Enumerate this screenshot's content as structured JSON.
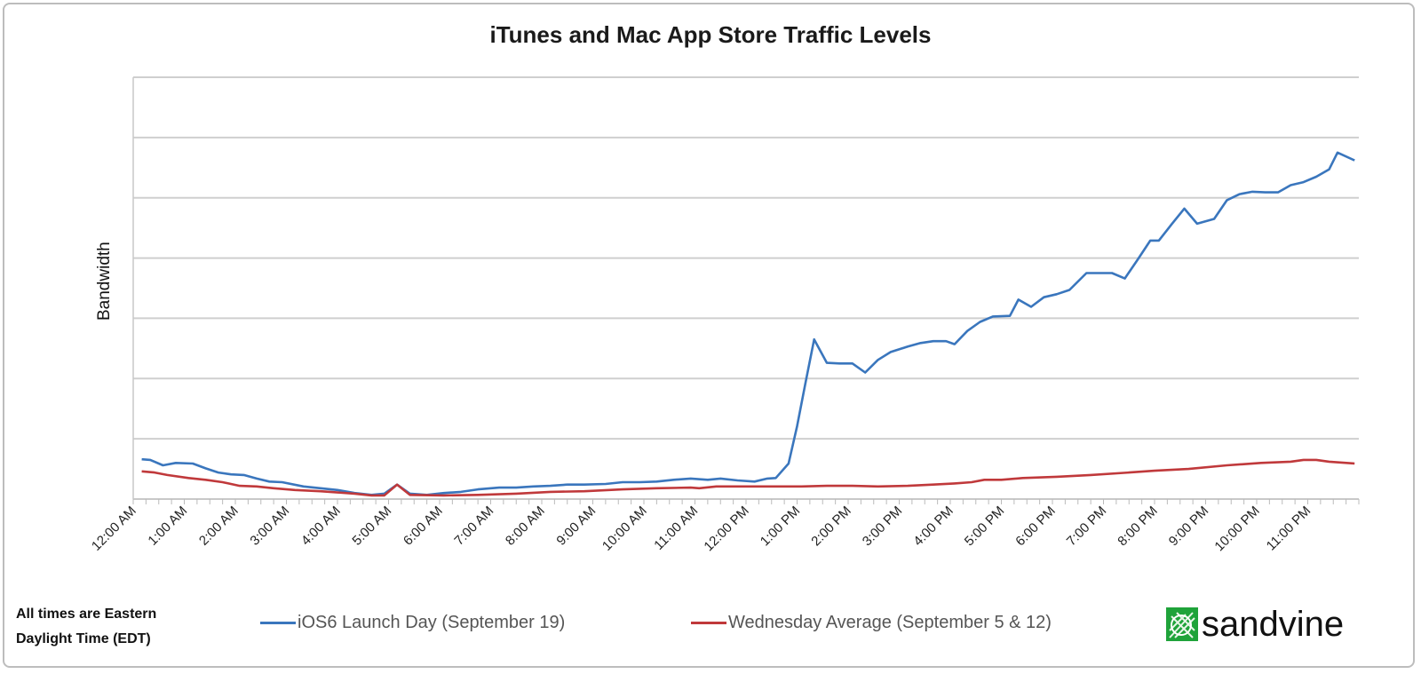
{
  "chart_data": {
    "type": "line",
    "title": "iTunes and Mac App Store Traffic Levels",
    "xlabel": "",
    "ylabel": "Bandwidth",
    "xlim": [
      "00:00",
      "24:00"
    ],
    "ylim": [
      0,
      7
    ],
    "y_tick_labels_shown": false,
    "grid": "horizontal",
    "legend_position": "bottom",
    "x_tick_labels": [
      "12:00 AM",
      "1:00 AM",
      "2:00 AM",
      "3:00 AM",
      "4:00 AM",
      "5:00 AM",
      "6:00 AM",
      "7:00 AM",
      "8:00 AM",
      "9:00 AM",
      "10:00 AM",
      "11:00 AM",
      "12:00 PM",
      "1:00 PM",
      "2:00 PM",
      "3:00 PM",
      "4:00 PM",
      "5:00 PM",
      "6:00 PM",
      "7:00 PM",
      "8:00 PM",
      "9:00 PM",
      "10:00 PM",
      "11:00 PM"
    ],
    "series": [
      {
        "name": "iOS6 Launch Day (September 19)",
        "color": "#3a76bd",
        "x": [
          "00:10",
          "00:20",
          "00:35",
          "00:50",
          "01:10",
          "01:25",
          "01:40",
          "01:55",
          "02:10",
          "02:25",
          "02:40",
          "02:55",
          "03:20",
          "03:40",
          "04:00",
          "04:20",
          "04:40",
          "04:55",
          "05:10",
          "05:25",
          "05:45",
          "06:05",
          "06:25",
          "06:45",
          "07:10",
          "07:30",
          "07:50",
          "08:10",
          "08:30",
          "08:50",
          "09:15",
          "09:35",
          "09:55",
          "10:15",
          "10:35",
          "10:55",
          "11:15",
          "11:30",
          "11:50",
          "12:10",
          "12:25",
          "12:35",
          "12:50",
          "13:00",
          "13:10",
          "13:20",
          "13:35",
          "13:50",
          "14:05",
          "14:20",
          "14:35",
          "14:50",
          "15:10",
          "15:25",
          "15:40",
          "15:55",
          "16:05",
          "16:20",
          "16:35",
          "16:50",
          "17:10",
          "17:20",
          "17:35",
          "17:50",
          "18:05",
          "18:20",
          "18:40",
          "19:10",
          "19:25",
          "19:40",
          "19:55",
          "20:05",
          "20:20",
          "20:35",
          "20:50",
          "21:10",
          "21:25",
          "21:40",
          "21:55",
          "22:10",
          "22:25",
          "22:40",
          "22:55",
          "23:10",
          "23:25",
          "23:35",
          "23:55"
        ],
        "y": [
          0.66,
          0.65,
          0.56,
          0.6,
          0.59,
          0.51,
          0.44,
          0.41,
          0.4,
          0.34,
          0.29,
          0.28,
          0.21,
          0.18,
          0.15,
          0.1,
          0.07,
          0.09,
          0.24,
          0.09,
          0.07,
          0.1,
          0.12,
          0.16,
          0.19,
          0.19,
          0.21,
          0.22,
          0.24,
          0.24,
          0.25,
          0.28,
          0.28,
          0.29,
          0.32,
          0.34,
          0.32,
          0.34,
          0.31,
          0.29,
          0.34,
          0.35,
          0.59,
          1.21,
          1.94,
          2.65,
          2.26,
          2.25,
          2.25,
          2.1,
          2.31,
          2.44,
          2.53,
          2.59,
          2.62,
          2.62,
          2.57,
          2.79,
          2.94,
          3.03,
          3.04,
          3.31,
          3.19,
          3.35,
          3.4,
          3.47,
          3.75,
          3.75,
          3.66,
          3.97,
          4.29,
          4.29,
          4.56,
          4.82,
          4.57,
          4.65,
          4.96,
          5.06,
          5.1,
          5.09,
          5.09,
          5.21,
          5.26,
          5.35,
          5.47,
          5.75,
          5.62
        ]
      },
      {
        "name": "Wednesday Average (September 5 & 12)",
        "color": "#c0393b",
        "x": [
          "00:10",
          "00:25",
          "00:40",
          "01:05",
          "01:25",
          "01:45",
          "02:05",
          "02:25",
          "02:45",
          "03:10",
          "03:40",
          "04:20",
          "04:40",
          "04:55",
          "05:10",
          "05:25",
          "06:05",
          "06:45",
          "07:30",
          "08:10",
          "08:50",
          "09:35",
          "10:15",
          "10:55",
          "11:05",
          "11:25",
          "11:50",
          "12:30",
          "13:05",
          "13:35",
          "14:05",
          "14:35",
          "15:10",
          "15:40",
          "16:05",
          "16:25",
          "16:40",
          "17:00",
          "17:25",
          "18:05",
          "18:45",
          "19:30",
          "20:00",
          "20:40",
          "21:25",
          "22:05",
          "22:40",
          "22:55",
          "23:10",
          "23:25",
          "23:55"
        ],
        "y": [
          0.46,
          0.44,
          0.4,
          0.35,
          0.32,
          0.28,
          0.22,
          0.21,
          0.18,
          0.15,
          0.13,
          0.09,
          0.06,
          0.06,
          0.24,
          0.07,
          0.06,
          0.07,
          0.09,
          0.12,
          0.13,
          0.16,
          0.18,
          0.19,
          0.18,
          0.21,
          0.21,
          0.21,
          0.21,
          0.22,
          0.22,
          0.21,
          0.22,
          0.24,
          0.26,
          0.28,
          0.32,
          0.32,
          0.35,
          0.37,
          0.4,
          0.44,
          0.47,
          0.5,
          0.56,
          0.6,
          0.62,
          0.65,
          0.65,
          0.62,
          0.59
        ]
      }
    ]
  },
  "note": {
    "line1": "All times are Eastern",
    "line2": "Daylight Time (EDT)"
  },
  "logo": {
    "text": "sandvine",
    "color": "#1fa33a"
  }
}
